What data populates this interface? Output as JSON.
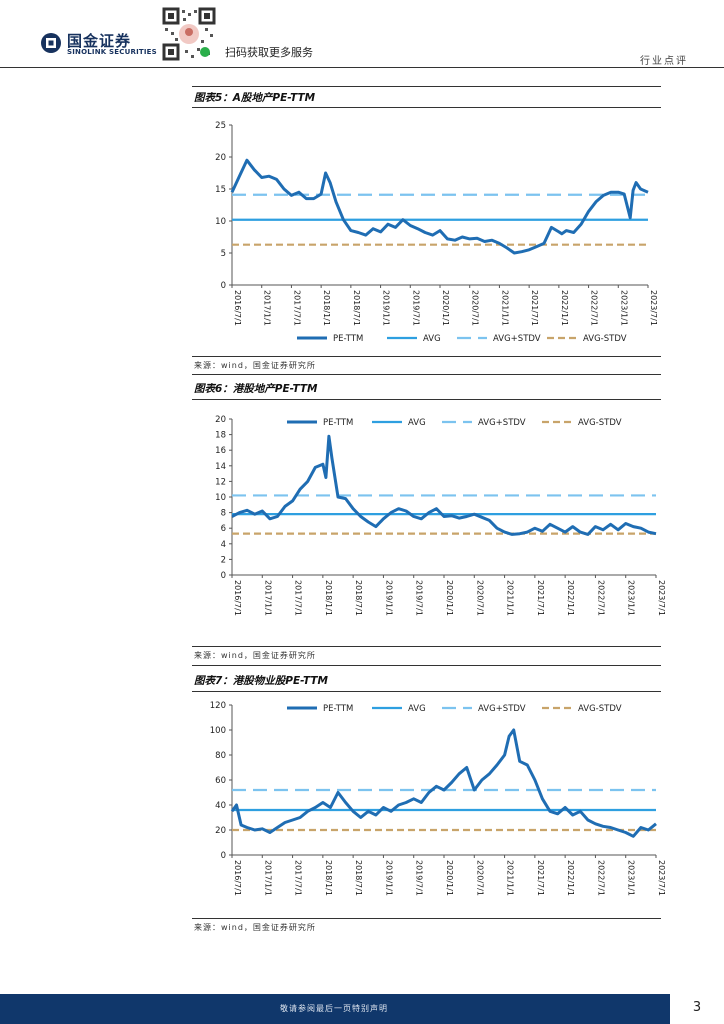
{
  "header": {
    "logo_cn": "国金证券",
    "logo_en": "SINOLINK SECURITIES",
    "scan_text": "扫码获取更多服务",
    "section": "行业点评"
  },
  "footer": {
    "disclaimer": "敬请参阅最后一页特别声明",
    "page": "3"
  },
  "colors": {
    "pe": "#1f6db3",
    "avg": "#2e9fe0",
    "plus": "#7cc3ef",
    "minus": "#c8a46a",
    "footer": "#10376b"
  },
  "figures": [
    {
      "title": "图表5：A股地产PE-TTM",
      "source": "来源：wind，国金证券研究所"
    },
    {
      "title": "图表6：港股地产PE-TTM",
      "source": "来源：wind，国金证券研究所"
    },
    {
      "title": "图表7：港股物业股PE-TTM",
      "source": "来源：wind，国金证券研究所"
    }
  ],
  "chart_data": [
    {
      "type": "line",
      "title": "图表5：A股地产PE-TTM",
      "legend_position": "bottom",
      "categories": [
        "2016/7/1",
        "2017/1/1",
        "2017/7/1",
        "2018/1/1",
        "2018/7/1",
        "2019/1/1",
        "2019/7/1",
        "2020/1/1",
        "2020/7/1",
        "2021/1/1",
        "2021/7/1",
        "2022/1/1",
        "2022/7/1",
        "2023/1/1",
        "2023/7/1"
      ],
      "ylim": [
        0,
        25
      ],
      "yticks": [
        0,
        5,
        10,
        15,
        20,
        25
      ],
      "series": [
        {
          "name": "PE-TTM",
          "style": "solid-thick",
          "x": [
            0,
            0.25,
            0.5,
            0.75,
            1,
            1.25,
            1.5,
            1.75,
            2,
            2.25,
            2.5,
            2.75,
            3,
            3.15,
            3.3,
            3.5,
            3.75,
            4,
            4.25,
            4.5,
            4.75,
            5,
            5.25,
            5.5,
            5.75,
            6,
            6.25,
            6.5,
            6.75,
            7,
            7.25,
            7.5,
            7.75,
            8,
            8.25,
            8.5,
            8.75,
            9,
            9.25,
            9.5,
            9.75,
            10,
            10.25,
            10.5,
            10.75,
            11,
            11.1,
            11.25,
            11.5,
            11.75,
            12,
            12.25,
            12.5,
            12.75,
            13,
            13.2,
            13.4,
            13.5,
            13.6,
            13.75,
            14
          ],
          "values": [
            14.5,
            17,
            19.5,
            18,
            16.8,
            17,
            16.5,
            15,
            14,
            14.5,
            13.5,
            13.5,
            14.2,
            17.5,
            16,
            13,
            10.2,
            8.5,
            8.2,
            7.8,
            8.8,
            8.3,
            9.5,
            9,
            10.2,
            9.3,
            8.8,
            8.2,
            7.8,
            8.5,
            7.2,
            7,
            7.5,
            7.2,
            7.3,
            6.8,
            7,
            6.5,
            5.8,
            5,
            5.2,
            5.5,
            6,
            6.5,
            9,
            8.3,
            8,
            8.5,
            8.2,
            9.5,
            11.5,
            13,
            14,
            14.5,
            14.5,
            14.2,
            10.5,
            14.8,
            16,
            15,
            14.5
          ]
        },
        {
          "name": "AVG",
          "style": "solid",
          "value": 10.2
        },
        {
          "name": "AVG+STDV",
          "style": "dashed",
          "value": 14.1
        },
        {
          "name": "AVG-STDV",
          "style": "dashed",
          "value": 6.3
        }
      ]
    },
    {
      "type": "line",
      "title": "图表6：港股地产PE-TTM",
      "legend_position": "top",
      "categories": [
        "2016/7/1",
        "2017/1/1",
        "2017/7/1",
        "2018/1/1",
        "2018/7/1",
        "2019/1/1",
        "2019/7/1",
        "2020/1/1",
        "2020/7/1",
        "2021/1/1",
        "2021/7/1",
        "2022/1/1",
        "2022/7/1",
        "2023/1/1",
        "2023/7/1"
      ],
      "ylim": [
        0,
        20
      ],
      "yticks": [
        0,
        2,
        4,
        6,
        8,
        10,
        12,
        14,
        16,
        18,
        20
      ],
      "series": [
        {
          "name": "PE-TTM",
          "style": "solid-thick",
          "x": [
            0,
            0.25,
            0.5,
            0.75,
            1,
            1.25,
            1.5,
            1.75,
            2,
            2.25,
            2.5,
            2.75,
            3,
            3.1,
            3.2,
            3.3,
            3.5,
            3.75,
            4,
            4.25,
            4.5,
            4.75,
            5,
            5.25,
            5.5,
            5.75,
            6,
            6.25,
            6.5,
            6.75,
            7,
            7.25,
            7.5,
            7.75,
            8,
            8.25,
            8.5,
            8.75,
            9,
            9.25,
            9.5,
            9.75,
            10,
            10.25,
            10.5,
            10.75,
            11,
            11.25,
            11.5,
            11.75,
            12,
            12.25,
            12.5,
            12.75,
            13,
            13.25,
            13.5,
            13.75,
            14
          ],
          "values": [
            7.5,
            8,
            8.3,
            7.8,
            8.2,
            7.2,
            7.5,
            8.8,
            9.5,
            11,
            12,
            13.8,
            14.2,
            12.5,
            17.8,
            15,
            10,
            9.8,
            8.5,
            7.5,
            6.8,
            6.2,
            7.2,
            8,
            8.5,
            8.2,
            7.5,
            7.2,
            8,
            8.5,
            7.5,
            7.6,
            7.3,
            7.5,
            7.8,
            7.4,
            7,
            6,
            5.5,
            5.2,
            5.3,
            5.5,
            6,
            5.6,
            6.5,
            6,
            5.5,
            6.2,
            5.5,
            5.2,
            6.2,
            5.8,
            6.5,
            5.8,
            6.6,
            6.2,
            6,
            5.5,
            5.3
          ]
        },
        {
          "name": "AVG",
          "style": "solid",
          "value": 7.8
        },
        {
          "name": "AVG+STDV",
          "style": "dashed",
          "value": 10.2
        },
        {
          "name": "AVG-STDV",
          "style": "dashed",
          "value": 5.3
        }
      ]
    },
    {
      "type": "line",
      "title": "图表7：港股物业股PE-TTM",
      "legend_position": "top",
      "categories": [
        "2016/7/1",
        "2017/1/1",
        "2017/7/1",
        "2018/1/1",
        "2018/7/1",
        "2019/1/1",
        "2019/7/1",
        "2020/1/1",
        "2020/7/1",
        "2021/1/1",
        "2021/7/1",
        "2022/1/1",
        "2022/7/1",
        "2023/1/1",
        "2023/7/1"
      ],
      "ylim": [
        0,
        120
      ],
      "yticks": [
        0,
        20,
        40,
        60,
        80,
        100,
        120
      ],
      "series": [
        {
          "name": "PE-TTM",
          "style": "solid-thick",
          "x": [
            0,
            0.15,
            0.3,
            0.5,
            0.75,
            1,
            1.25,
            1.5,
            1.75,
            2,
            2.25,
            2.5,
            2.75,
            3,
            3.25,
            3.5,
            3.75,
            4,
            4.25,
            4.5,
            4.75,
            5,
            5.25,
            5.5,
            5.75,
            6,
            6.25,
            6.5,
            6.75,
            7,
            7.25,
            7.5,
            7.75,
            8,
            8.25,
            8.5,
            8.75,
            9,
            9.15,
            9.3,
            9.5,
            9.75,
            10,
            10.25,
            10.5,
            10.75,
            11,
            11.25,
            11.5,
            11.75,
            12,
            12.25,
            12.5,
            12.75,
            13,
            13.25,
            13.5,
            13.75,
            14
          ],
          "values": [
            35,
            40,
            24,
            22,
            20,
            21,
            18,
            22,
            26,
            28,
            30,
            35,
            38,
            42,
            38,
            50,
            42,
            35,
            30,
            35,
            32,
            38,
            35,
            40,
            42,
            45,
            42,
            50,
            55,
            52,
            58,
            65,
            70,
            52,
            60,
            65,
            72,
            80,
            95,
            100,
            75,
            72,
            60,
            45,
            35,
            33,
            38,
            32,
            35,
            28,
            25,
            23,
            22,
            20,
            18,
            15,
            22,
            20,
            25
          ]
        },
        {
          "name": "AVG",
          "style": "solid",
          "value": 36
        },
        {
          "name": "AVG+STDV",
          "style": "dashed",
          "value": 52
        },
        {
          "name": "AVG-STDV",
          "style": "dashed",
          "value": 20
        }
      ]
    }
  ]
}
